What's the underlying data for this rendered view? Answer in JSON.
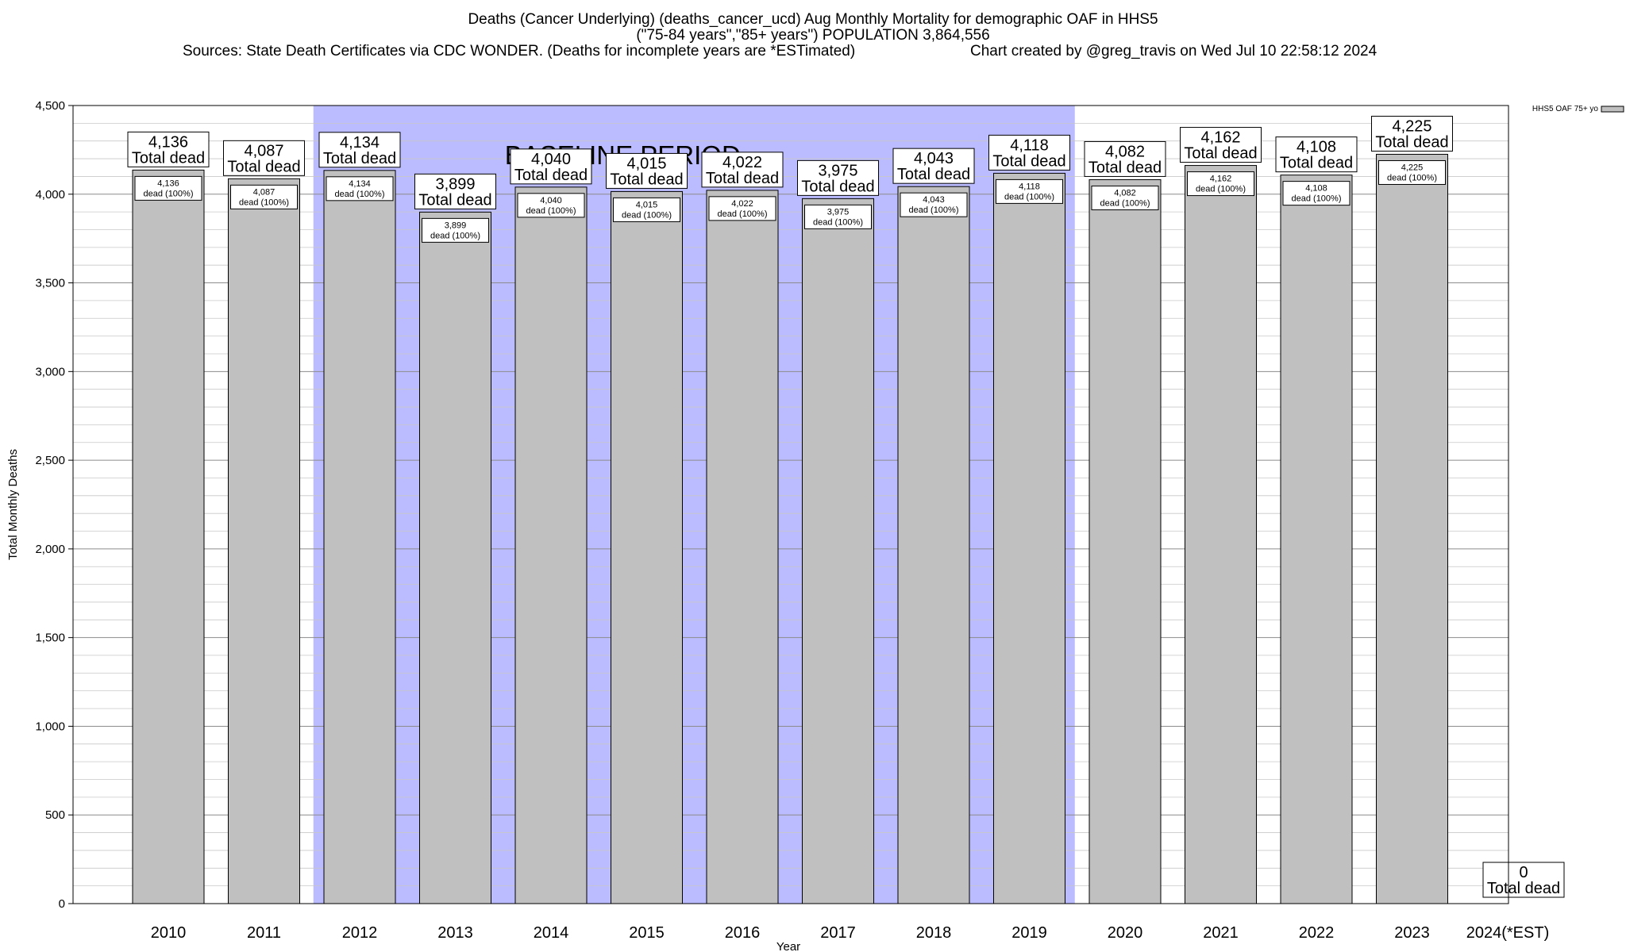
{
  "header": {
    "title_line1": "Deaths (Cancer Underlying) (deaths_cancer_ucd) Aug Monthly Mortality for demographic OAF in HHS5",
    "title_line2": "(\"75-84 years\",\"85+ years\") POPULATION 3,864,556",
    "sources": "Sources: State Death Certificates via CDC WONDER. (Deaths for incomplete years are *ESTimated)",
    "created": "Chart created by @greg_travis on Wed Jul 10 22:58:12 2024"
  },
  "chart_data": {
    "type": "bar",
    "categories": [
      "2010",
      "2011",
      "2012",
      "2013",
      "2014",
      "2015",
      "2016",
      "2017",
      "2018",
      "2019",
      "2020",
      "2021",
      "2022",
      "2023",
      "2024(*EST)"
    ],
    "series": [
      {
        "name": "HHS5 OAF 75+ yo",
        "values": [
          4136,
          4087,
          4134,
          3899,
          4040,
          4015,
          4022,
          3975,
          4043,
          4118,
          4082,
          4162,
          4108,
          4225,
          0
        ],
        "value_labels": [
          "4,136",
          "4,087",
          "4,134",
          "3,899",
          "4,040",
          "4,015",
          "4,022",
          "3,975",
          "4,043",
          "4,118",
          "4,082",
          "4,162",
          "4,108",
          "4,225",
          "0"
        ],
        "color": "#c0c0c0"
      }
    ],
    "total_label": "Total dead",
    "inner_label_suffix": "dead (100%)",
    "ylim": [
      0,
      4500
    ],
    "yticks": [
      0,
      500,
      1000,
      1500,
      2000,
      2500,
      3000,
      3500,
      4000,
      4500
    ],
    "ytick_labels": [
      "0",
      "500",
      "1,000",
      "1,500",
      "2,000",
      "2,500",
      "3,000",
      "3,500",
      "4,000",
      "4,500"
    ],
    "xlabel": "Year",
    "ylabel": "Total Monthly Deaths",
    "baseline": {
      "label": "BASELINE PERIOD",
      "from": "2012",
      "to": "2019",
      "color": "#bbbbff"
    },
    "grid": true,
    "legend": "top-right"
  }
}
